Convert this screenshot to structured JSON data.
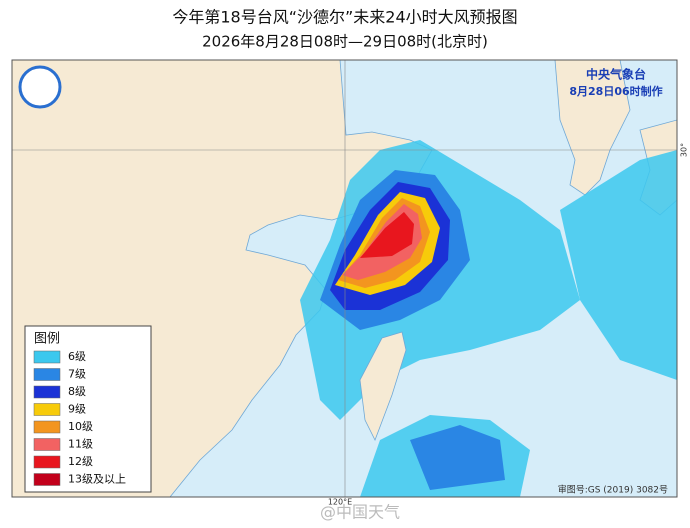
{
  "header": {
    "title": "今年第18号台风“沙德尔”未来24小时大风预报图",
    "subtitle": "2026年8月28日08时—29日08时(北京时)"
  },
  "issuer": {
    "agency": "中央气象台",
    "issued": "8月28日06时制作"
  },
  "legend": {
    "title": "图例",
    "items": [
      {
        "label": "6级",
        "color": "#3cc8ee"
      },
      {
        "label": "7级",
        "color": "#2a86e4"
      },
      {
        "label": "8级",
        "color": "#1b32d6"
      },
      {
        "label": "9级",
        "color": "#f7cb0a"
      },
      {
        "label": "10级",
        "color": "#f3951f"
      },
      {
        "label": "11级",
        "color": "#f26262"
      },
      {
        "label": "12级",
        "color": "#e8161e"
      },
      {
        "label": "13级及以上",
        "color": "#c2001b"
      }
    ]
  },
  "axes": {
    "lat_label": "30°",
    "lon_label": "120°E"
  },
  "footer": {
    "map_number": "审图号:GS (2019) 3082号",
    "watermark": "@中国天气"
  }
}
